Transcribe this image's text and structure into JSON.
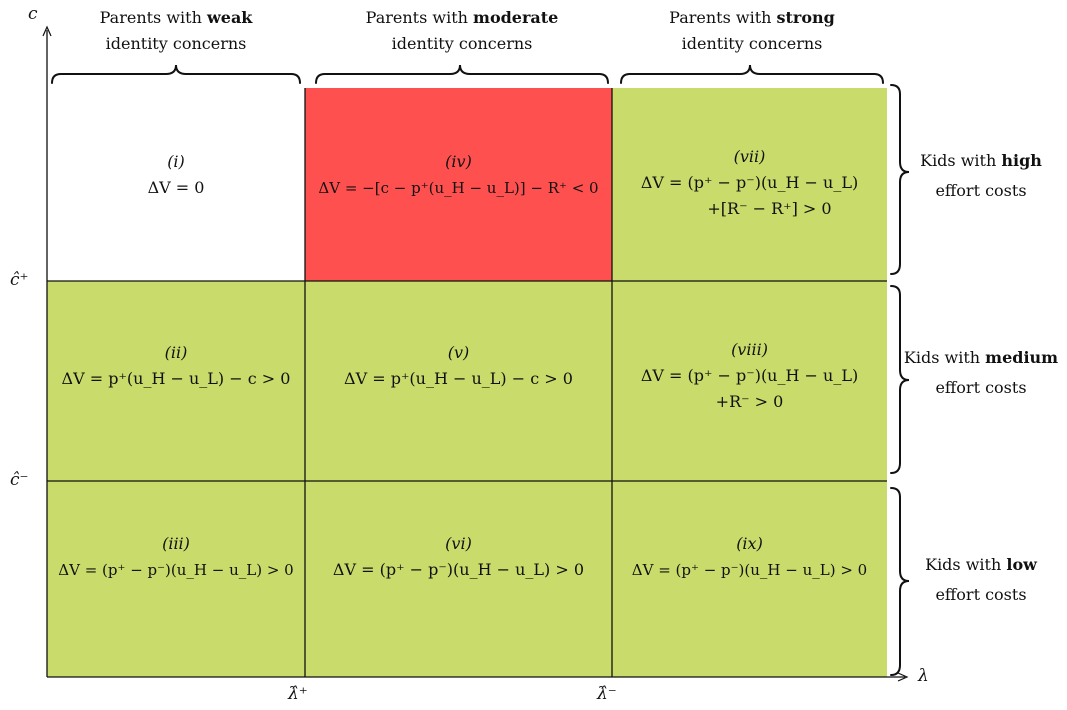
{
  "axes": {
    "y_label": "c",
    "x_label": "λ",
    "y_ticks": [
      "ĉ⁺",
      "ĉ⁻"
    ],
    "x_ticks": [
      "λ̂⁺",
      "λ̂⁻"
    ]
  },
  "columns": [
    {
      "prefix": "Parents with ",
      "bold": "weak",
      "line2": "identity concerns"
    },
    {
      "prefix": "Parents with ",
      "bold": "moderate",
      "line2": "identity concerns"
    },
    {
      "prefix": "Parents with ",
      "bold": "strong",
      "line2": "identity concerns"
    }
  ],
  "rows": [
    {
      "prefix": "Kids with ",
      "bold": "high",
      "line2": "effort costs"
    },
    {
      "prefix": "Kids with ",
      "bold": "medium",
      "line2": "effort costs"
    },
    {
      "prefix": "Kids with ",
      "bold": "low",
      "line2": "effort costs"
    }
  ],
  "cells": [
    {
      "id": "(i)",
      "line1": "ΔV = 0",
      "line2": "",
      "fill": "#ffffff"
    },
    {
      "id": "(iv)",
      "line1": "ΔV = −[c − p⁺(u_H − u_L)] − R⁺ < 0",
      "line2": "",
      "fill": "#ff5050"
    },
    {
      "id": "(vii)",
      "line1": "ΔV = (p⁺ − p⁻)(u_H − u_L)",
      "line2": "+[R⁻ − R⁺] > 0",
      "fill": "#c9db6a"
    },
    {
      "id": "(ii)",
      "line1": "ΔV = p⁺(u_H − u_L) − c > 0",
      "line2": "",
      "fill": "#c9db6a"
    },
    {
      "id": "(v)",
      "line1": "ΔV = p⁺(u_H − u_L) − c > 0",
      "line2": "",
      "fill": "#c9db6a"
    },
    {
      "id": "(viii)",
      "line1": "ΔV = (p⁺ − p⁻)(u_H − u_L)",
      "line2": "+R⁻ > 0",
      "fill": "#c9db6a"
    },
    {
      "id": "(iii)",
      "line1": "ΔV = (p⁺ − p⁻)(u_H − u_L) > 0",
      "line2": "",
      "fill": "#c9db6a"
    },
    {
      "id": "(vi)",
      "line1": "ΔV = (p⁺ − p⁻)(u_H − u_L) > 0",
      "line2": "",
      "fill": "#c9db6a"
    },
    {
      "id": "(ix)",
      "line1": "ΔV = (p⁺ − p⁻)(u_H − u_L) > 0",
      "line2": "",
      "fill": "#c9db6a"
    }
  ]
}
